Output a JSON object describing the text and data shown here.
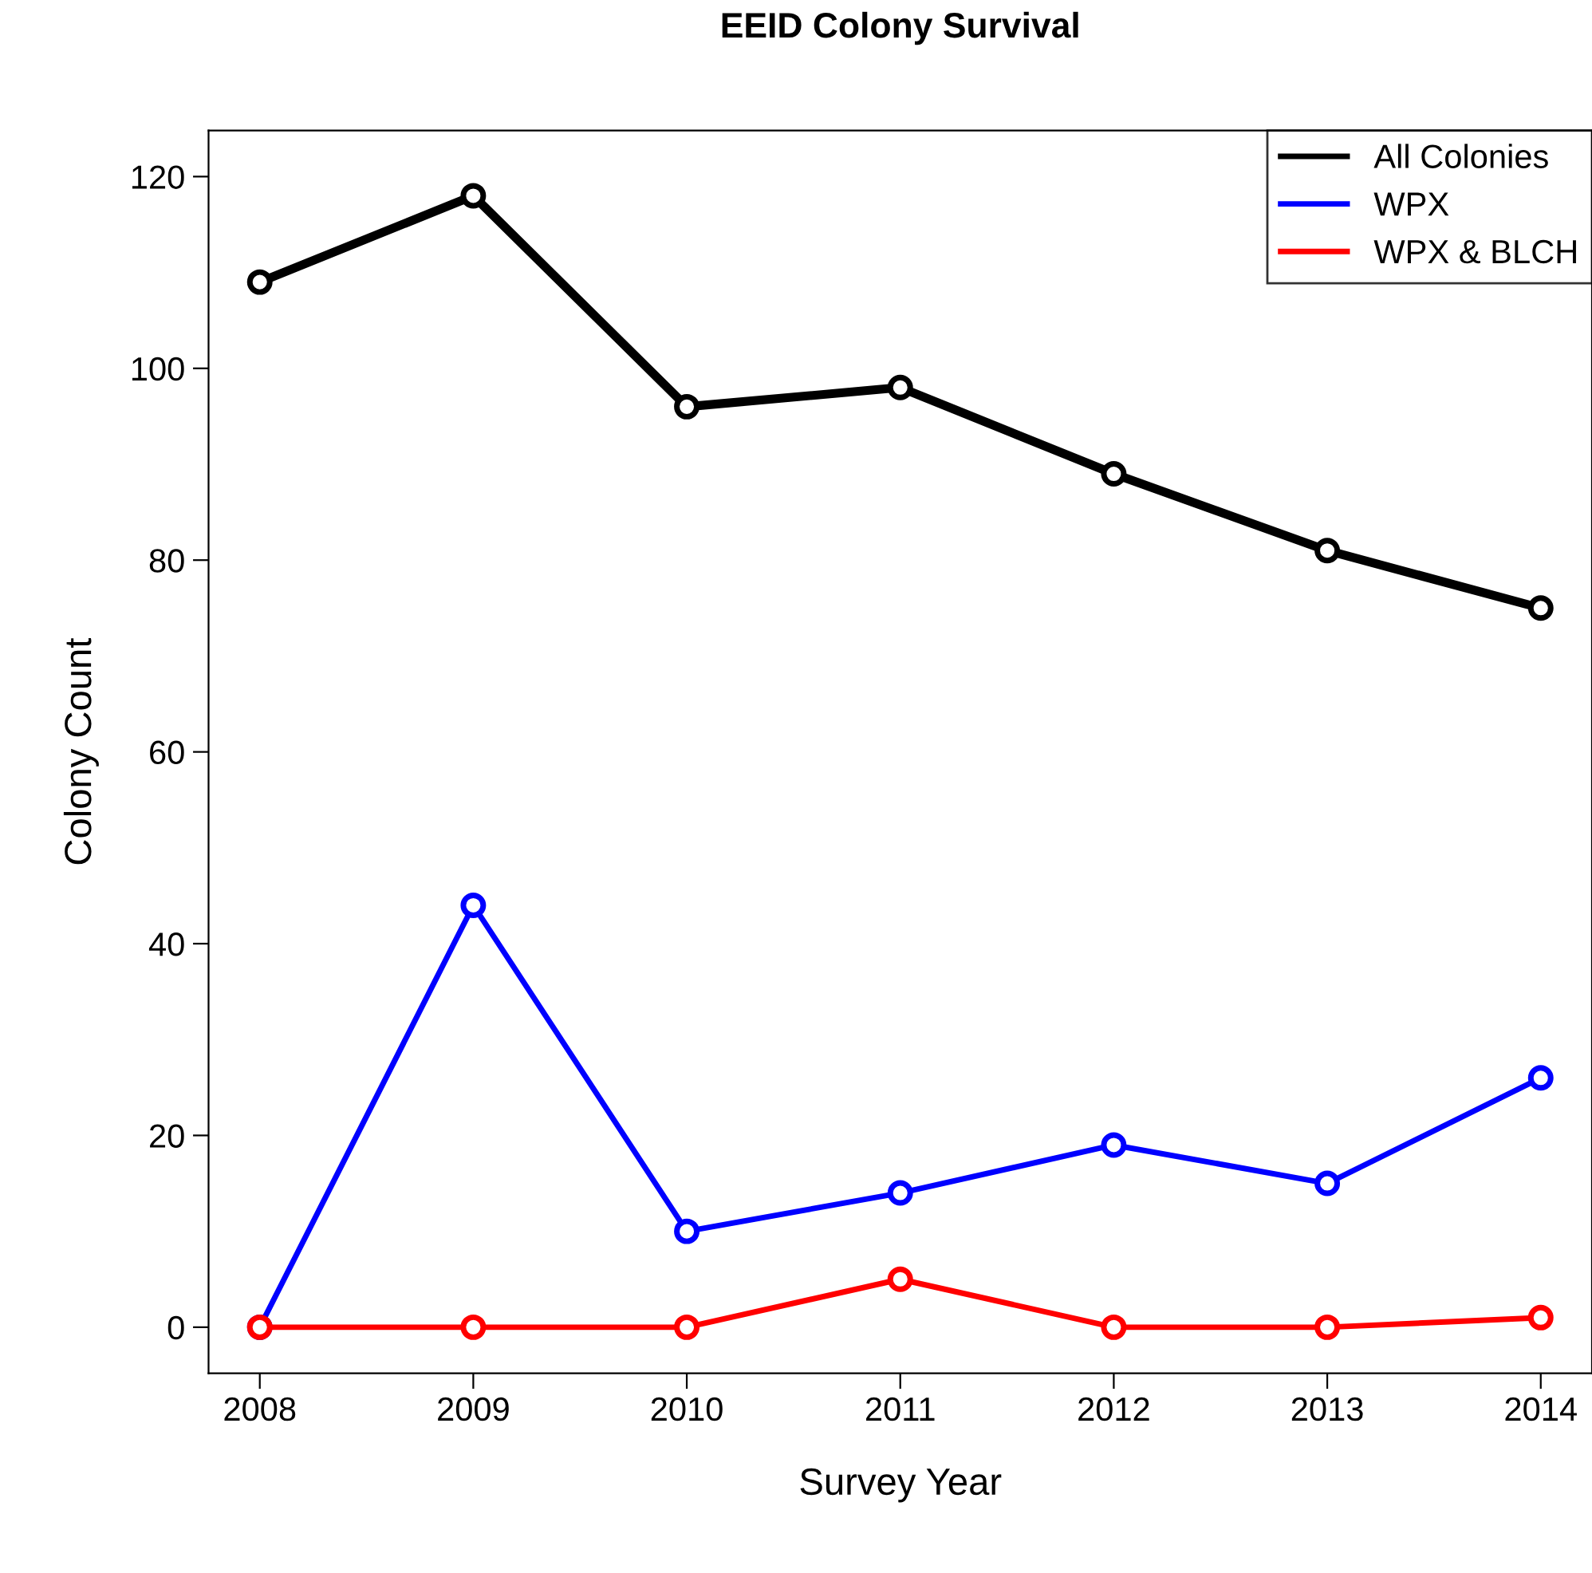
{
  "chart_data": {
    "type": "line",
    "title": "EEID Colony Survival",
    "xlabel": "Survey Year",
    "ylabel": "Colony Count",
    "x": [
      2008,
      2009,
      2010,
      2011,
      2012,
      2013,
      2014
    ],
    "series": [
      {
        "name": "All Colonies",
        "color": "#000000",
        "values": [
          109,
          118,
          96,
          98,
          89,
          81,
          75
        ]
      },
      {
        "name": "WPX",
        "color": "#0000ff",
        "values": [
          0,
          44,
          10,
          14,
          19,
          15,
          26
        ]
      },
      {
        "name": "WPX & BLCH",
        "color": "#ff0000",
        "values": [
          0,
          0,
          0,
          5,
          0,
          0,
          1
        ]
      }
    ],
    "xlim": [
      2007.76,
      2014.24
    ],
    "xticks": [
      2008,
      2009,
      2010,
      2011,
      2012,
      2013,
      2014
    ],
    "ylim": [
      -4.8,
      124.8
    ],
    "yticks": [
      0,
      20,
      40,
      60,
      80,
      100,
      120
    ],
    "grid": false,
    "legend": "top right",
    "marker": "circle",
    "line_style": "solid"
  }
}
